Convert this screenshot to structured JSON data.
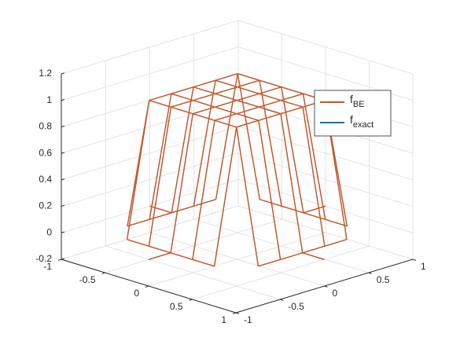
{
  "chart_data": {
    "type": "mesh3d",
    "x": [
      -1,
      -0.75,
      -0.5,
      -0.25,
      0,
      0.25,
      0.5,
      0.75,
      1
    ],
    "y": [
      -1,
      -0.75,
      -0.5,
      -0.25,
      0,
      0.25,
      0.5,
      0.75,
      1
    ],
    "xlim": [
      -1,
      1
    ],
    "ylim": [
      -1,
      1
    ],
    "zlim": [
      -0.2,
      1.2
    ],
    "xticks": [
      -1,
      -0.5,
      0,
      0.5,
      1
    ],
    "yticks": [
      -1,
      -0.5,
      0,
      0.5,
      1
    ],
    "zticks": [
      -0.2,
      0,
      0.2,
      0.4,
      0.6,
      0.8,
      1,
      1.2
    ],
    "grid": true,
    "legend": "upper-right",
    "series": [
      {
        "name": "fBE",
        "color": "#d95319",
        "z": [
          [
            null,
            null,
            null,
            null,
            0,
            null,
            null,
            null,
            null
          ],
          [
            null,
            null,
            0,
            0,
            0,
            0,
            0,
            null,
            null
          ],
          [
            null,
            0,
            1,
            1,
            1,
            1,
            1,
            0,
            null
          ],
          [
            null,
            0,
            1,
            1,
            1,
            1,
            1,
            0,
            null
          ],
          [
            0,
            0,
            1,
            1,
            1,
            1,
            1,
            0,
            0
          ],
          [
            null,
            0,
            1,
            1,
            1,
            1,
            1,
            0,
            null
          ],
          [
            null,
            0,
            1,
            1,
            1,
            1,
            1,
            0,
            null
          ],
          [
            null,
            null,
            0,
            0,
            0,
            0,
            0,
            null,
            null
          ],
          [
            null,
            null,
            null,
            null,
            0,
            null,
            null,
            null,
            null
          ]
        ]
      },
      {
        "name": "fexact",
        "color": "#0072bd",
        "z": [
          [
            null,
            null,
            null,
            null,
            0,
            null,
            null,
            null,
            null
          ],
          [
            null,
            null,
            0,
            0,
            0,
            0,
            0,
            null,
            null
          ],
          [
            null,
            0,
            1,
            1,
            1,
            1,
            1,
            0,
            null
          ],
          [
            null,
            0,
            1,
            1,
            1,
            1,
            1,
            0,
            null
          ],
          [
            0,
            0,
            1,
            1,
            1,
            1,
            1,
            0,
            0
          ],
          [
            null,
            0,
            1,
            1,
            1,
            1,
            1,
            0,
            null
          ],
          [
            null,
            0,
            1,
            1,
            1,
            1,
            1,
            0,
            null
          ],
          [
            null,
            null,
            0,
            0,
            0,
            0,
            0,
            null,
            null
          ],
          [
            null,
            null,
            null,
            null,
            0,
            null,
            null,
            null,
            null
          ]
        ]
      }
    ]
  }
}
